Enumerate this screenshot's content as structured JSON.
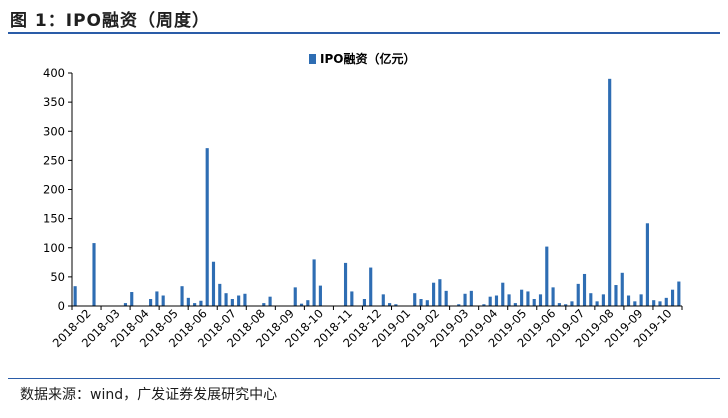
{
  "figure": {
    "title": "图 1：IPO融资（周度）",
    "source": "数据来源：wind，广发证券发展研究中心"
  },
  "chart_data": {
    "type": "bar",
    "legend": "IPO融资（亿元）",
    "legend_position": "top-center",
    "ylim": [
      0,
      400
    ],
    "yticks": [
      0,
      50,
      100,
      150,
      200,
      250,
      300,
      350,
      400
    ],
    "color": "#2e6db3",
    "grid": false,
    "x_tick_labels": [
      "2018-02",
      "2018-03",
      "2018-04",
      "2018-05",
      "2018-06",
      "2018-07",
      "2018-08",
      "2018-09",
      "2018-10",
      "2018-11",
      "2018-12",
      "2019-01",
      "2019-02",
      "2019-03",
      "2019-04",
      "2019-05",
      "2019-06",
      "2019-07",
      "2019-08",
      "2019-09",
      "2019-10"
    ],
    "series": [
      {
        "values": [
          34,
          0,
          0,
          108,
          0,
          0,
          0,
          0,
          5,
          24,
          0,
          0,
          12,
          25,
          18,
          0,
          0,
          34,
          14,
          5,
          9,
          271,
          76,
          38,
          22,
          12,
          18,
          21,
          0,
          0,
          5,
          16,
          0,
          0,
          0,
          32,
          4,
          10,
          80,
          35,
          0,
          0,
          0,
          74,
          25,
          0,
          12,
          66,
          0,
          20,
          5,
          3,
          0,
          0,
          22,
          12,
          10,
          40,
          46,
          26,
          0,
          3,
          21,
          26,
          0,
          3,
          16,
          18,
          40,
          20,
          5,
          28,
          25,
          12,
          20,
          102,
          32,
          5,
          3,
          8,
          38,
          55,
          22,
          8,
          20,
          390,
          36,
          57,
          18,
          8,
          20,
          142,
          10,
          8,
          14,
          28,
          42
        ]
      }
    ]
  }
}
